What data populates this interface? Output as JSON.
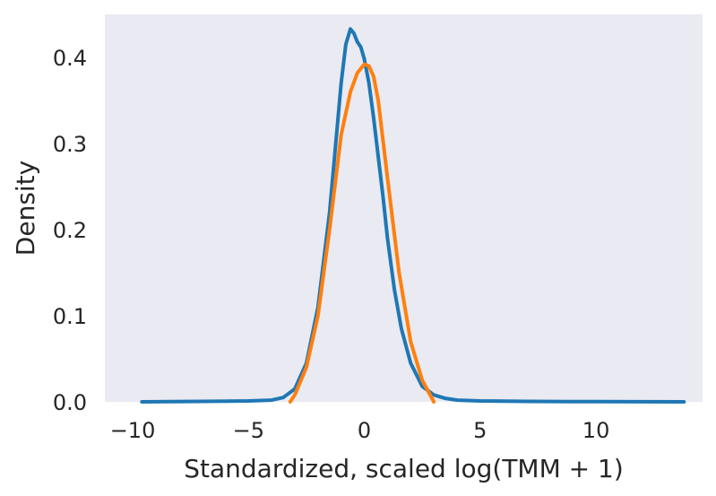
{
  "chart_data": {
    "type": "line",
    "title": "",
    "xlabel": "Standardized, scaled log(TMM + 1)",
    "ylabel": "Density",
    "xlim": [
      -11.2,
      14.6
    ],
    "ylim": [
      0,
      0.45
    ],
    "grid": false,
    "background": "#EAEAF2",
    "xticks": [
      -10,
      -5,
      0,
      5,
      10
    ],
    "xtick_labels": [
      "−10",
      "−5",
      "0",
      "5",
      "10"
    ],
    "yticks": [
      0.0,
      0.1,
      0.2,
      0.3,
      0.4
    ],
    "ytick_labels": [
      "0.0",
      "0.1",
      "0.2",
      "0.3",
      "0.4"
    ],
    "series": [
      {
        "color": "#1F77B4",
        "x": [
          -9.6,
          -7,
          -5,
          -4,
          -3.5,
          -3,
          -2.5,
          -2,
          -1.5,
          -1,
          -0.8,
          -0.6,
          -0.45,
          -0.3,
          -0.15,
          0,
          0.2,
          0.4,
          0.6,
          0.8,
          1,
          1.3,
          1.6,
          2,
          2.5,
          3,
          3.5,
          4,
          5,
          7,
          10,
          13.8
        ],
        "y": [
          0.0,
          0.0005,
          0.001,
          0.002,
          0.005,
          0.015,
          0.045,
          0.11,
          0.22,
          0.37,
          0.415,
          0.433,
          0.428,
          0.418,
          0.412,
          0.398,
          0.37,
          0.33,
          0.285,
          0.24,
          0.19,
          0.13,
          0.085,
          0.045,
          0.018,
          0.008,
          0.004,
          0.002,
          0.001,
          0.0005,
          0.0002,
          0.0
        ]
      },
      {
        "color": "#FF7F0E",
        "x": [
          -3.2,
          -3,
          -2.5,
          -2,
          -1.5,
          -1,
          -0.6,
          -0.3,
          0,
          0.2,
          0.4,
          0.6,
          1,
          1.5,
          2,
          2.5,
          3
        ],
        "y": [
          0.0,
          0.008,
          0.04,
          0.1,
          0.2,
          0.31,
          0.36,
          0.382,
          0.392,
          0.39,
          0.378,
          0.35,
          0.26,
          0.15,
          0.07,
          0.025,
          0.0
        ]
      }
    ]
  }
}
